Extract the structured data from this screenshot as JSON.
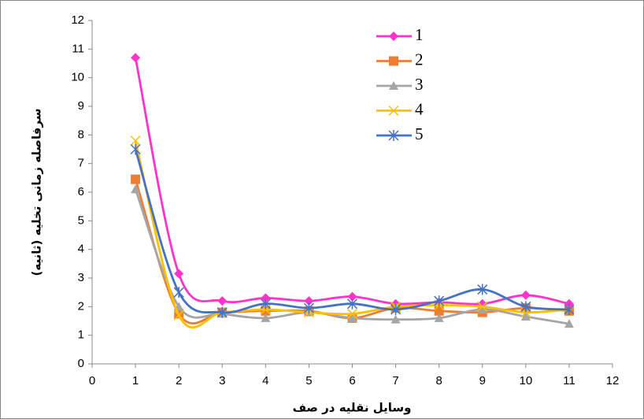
{
  "chart_data": {
    "type": "line",
    "x_label": "وسایل نقلیه در صف",
    "y_label": "سرفاصله زمانی تخلیه (ثانیه)",
    "x": [
      1,
      2,
      3,
      4,
      5,
      6,
      7,
      8,
      9,
      10,
      11
    ],
    "series": [
      {
        "name": "1",
        "color": "#ff33cc",
        "marker": "diamond",
        "values": [
          10.7,
          3.15,
          2.2,
          2.3,
          2.2,
          2.35,
          2.1,
          2.15,
          2.1,
          2.4,
          2.1
        ]
      },
      {
        "name": "2",
        "color": "#ed7d31",
        "marker": "square",
        "values": [
          6.45,
          1.75,
          1.8,
          1.85,
          1.85,
          1.6,
          1.95,
          1.85,
          1.8,
          1.95,
          1.85
        ]
      },
      {
        "name": "3",
        "color": "#a5a5a5",
        "marker": "triangle",
        "values": [
          6.1,
          2.0,
          1.75,
          1.6,
          1.8,
          1.6,
          1.55,
          1.6,
          1.9,
          1.65,
          1.4
        ]
      },
      {
        "name": "4",
        "color": "#ffc000",
        "marker": "x",
        "values": [
          7.8,
          1.7,
          1.8,
          1.9,
          1.8,
          1.75,
          2.0,
          2.05,
          2.0,
          1.8,
          1.9
        ]
      },
      {
        "name": "5",
        "color": "#4472c4",
        "marker": "star",
        "values": [
          7.5,
          2.5,
          1.8,
          2.1,
          1.95,
          2.1,
          1.9,
          2.2,
          2.6,
          2.0,
          1.9
        ]
      }
    ],
    "xlim": [
      0,
      12
    ],
    "xticks": [
      0,
      1,
      2,
      3,
      4,
      5,
      6,
      7,
      8,
      9,
      10,
      11,
      12
    ],
    "ylim": [
      0,
      12
    ],
    "yticks": [
      0,
      1,
      2,
      3,
      4,
      5,
      6,
      7,
      8,
      9,
      10,
      11,
      12
    ],
    "legend": "top-right",
    "smooth": true
  }
}
